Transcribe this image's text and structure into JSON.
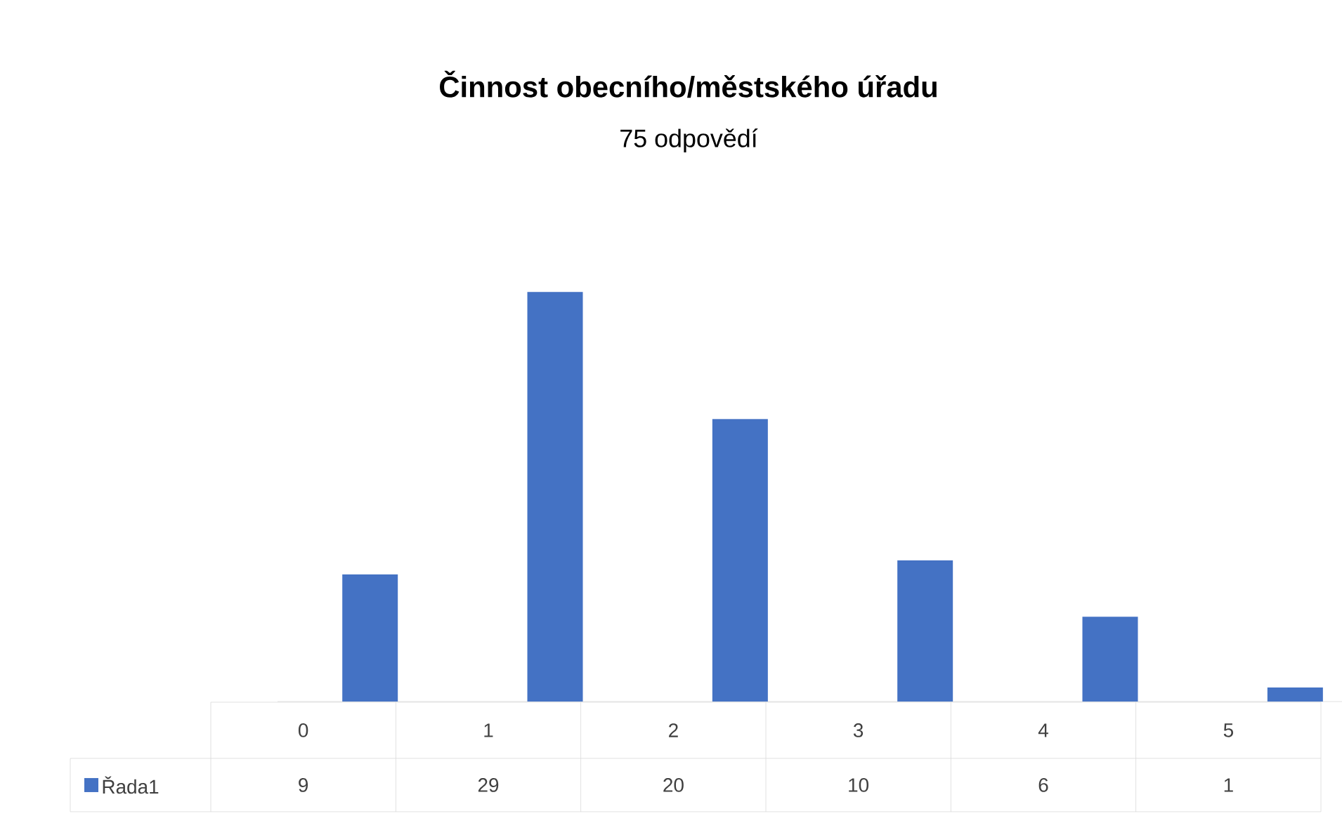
{
  "chart_data": {
    "type": "bar",
    "title": "Činnost obecního/městského úřadu",
    "subtitle": "75 odpovědí",
    "categories": [
      "0",
      "1",
      "2",
      "3",
      "4",
      "5"
    ],
    "series": [
      {
        "name": "Řada1",
        "color": "#4472c4",
        "values": [
          9,
          29,
          20,
          10,
          6,
          1
        ]
      }
    ],
    "data_labels": true,
    "legend": "bottom"
  }
}
